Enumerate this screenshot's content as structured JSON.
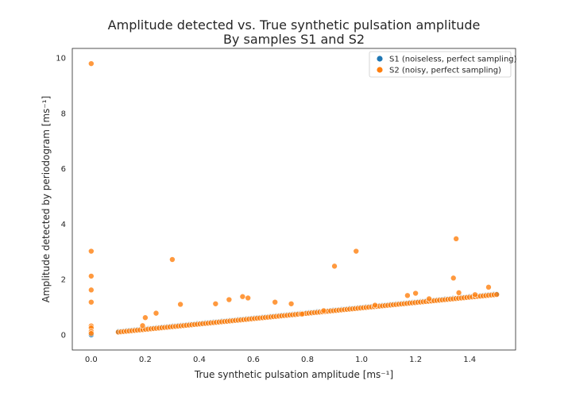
{
  "chart_data": {
    "type": "scatter",
    "title": "Amplitude detected vs. True synthetic pulsation amplitude",
    "subtitle": "By samples S1 and S2",
    "xlabel": "True synthetic pulsation amplitude",
    "xlabel_unit": "[ms⁻¹]",
    "ylabel": "Amplitude detected by periodogram",
    "ylabel_unit": "[ms⁻¹]",
    "xlim": [
      -0.07,
      1.57
    ],
    "ylim": [
      -0.55,
      10.35
    ],
    "x_ticks": [
      0.0,
      0.2,
      0.4,
      0.6,
      0.8,
      1.0,
      1.2,
      1.4
    ],
    "x_tick_labels": [
      "0.0",
      "0.2",
      "0.4",
      "0.6",
      "0.8",
      "1.0",
      "1.2",
      "1.4"
    ],
    "y_ticks": [
      0,
      2,
      4,
      6,
      8,
      10
    ],
    "y_tick_labels": [
      "0",
      "2",
      "4",
      "6",
      "8",
      "10"
    ],
    "grid": false,
    "legend_position": "top-right",
    "series": [
      {
        "name": "S1 (noiseless, perfect sampling)",
        "color": "#1f77b4",
        "line": {
          "slope": 0.97,
          "intercept": 0.02,
          "x_start": 0.1,
          "x_end": 1.5,
          "n_points": 140
        },
        "points": [
          [
            0.0,
            0.0
          ]
        ]
      },
      {
        "name": "S2 (noisy, perfect sampling)",
        "color": "#ff7f0e",
        "line": {
          "slope": 0.97,
          "intercept": 0.0,
          "x_start": 0.1,
          "x_end": 1.5,
          "n_points": 140
        },
        "points": [
          [
            0.0,
            9.8
          ],
          [
            0.0,
            3.02
          ],
          [
            0.0,
            2.12
          ],
          [
            0.0,
            1.62
          ],
          [
            0.0,
            1.18
          ],
          [
            0.0,
            0.32
          ],
          [
            0.0,
            0.25
          ],
          [
            0.0,
            0.12
          ],
          [
            0.0,
            0.05
          ],
          [
            0.2,
            0.62
          ],
          [
            0.24,
            0.78
          ],
          [
            0.19,
            0.33
          ],
          [
            0.3,
            2.72
          ],
          [
            0.33,
            1.1
          ],
          [
            0.46,
            1.12
          ],
          [
            0.51,
            1.27
          ],
          [
            0.56,
            1.38
          ],
          [
            0.58,
            1.33
          ],
          [
            0.68,
            1.18
          ],
          [
            0.74,
            1.12
          ],
          [
            0.9,
            2.48
          ],
          [
            0.98,
            3.02
          ],
          [
            1.17,
            1.42
          ],
          [
            1.2,
            1.5
          ],
          [
            1.34,
            2.05
          ],
          [
            1.35,
            3.47
          ],
          [
            1.36,
            1.52
          ],
          [
            1.47,
            1.72
          ],
          [
            0.78,
            0.75
          ],
          [
            0.86,
            0.87
          ],
          [
            1.05,
            1.07
          ],
          [
            1.25,
            1.3
          ],
          [
            1.42,
            1.45
          ]
        ]
      }
    ]
  }
}
